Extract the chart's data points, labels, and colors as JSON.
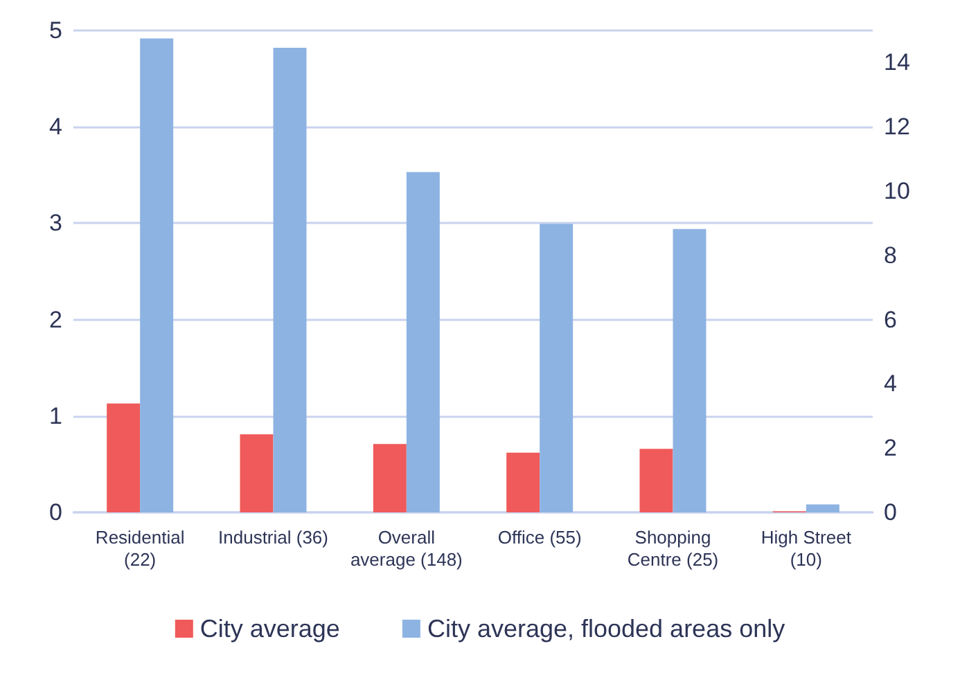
{
  "chart_data": {
    "type": "bar",
    "categories": [
      "Residential\n(22)",
      "Industrial (36)",
      "Overall\naverage (148)",
      "Office (55)",
      "Shopping\nCentre (25)",
      "High Street\n(10)"
    ],
    "series": [
      {
        "name": "City average",
        "color": "#f05a5a",
        "values": [
          1.13,
          0.81,
          0.71,
          0.62,
          0.66,
          0.01
        ]
      },
      {
        "name": "City average, flooded areas only",
        "color": "#8db3e2",
        "axis": "y2",
        "values": [
          14.75,
          14.46,
          10.59,
          8.98,
          8.82,
          0.25
        ]
      }
    ],
    "ylim": [
      0,
      5
    ],
    "yticks": [
      0,
      1,
      2,
      3,
      4,
      5
    ],
    "y2lim": [
      0,
      15
    ],
    "y2ticks": [
      0,
      2,
      4,
      6,
      8,
      10,
      12,
      14
    ],
    "grid": "y",
    "legend": "bottom"
  }
}
